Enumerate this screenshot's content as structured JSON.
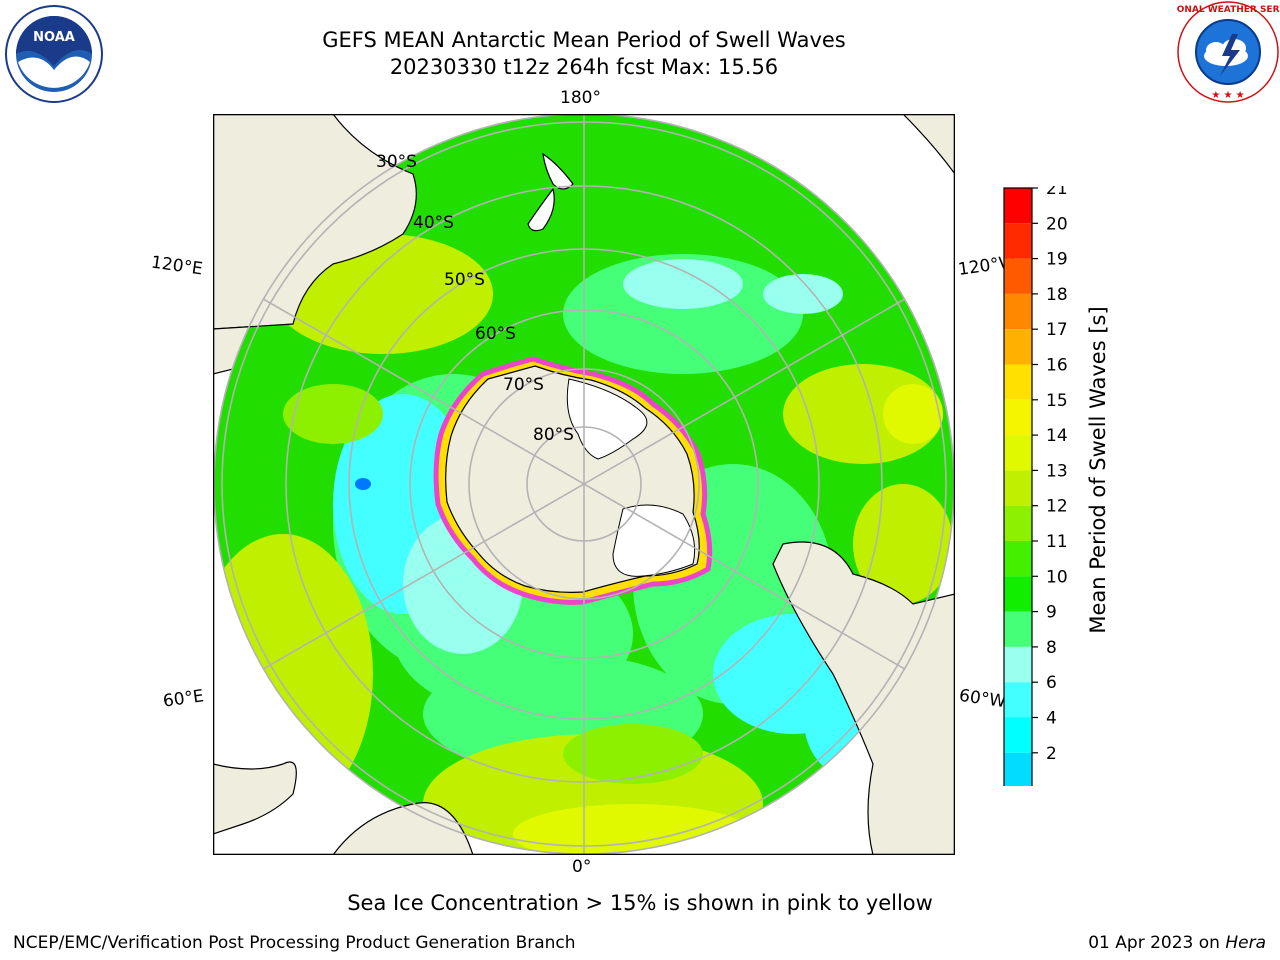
{
  "title": {
    "line1": "GEFS MEAN Antarctic Mean Period of Swell Waves",
    "line2": "20230330 t12z 264h fcst   Max: 15.56"
  },
  "map": {
    "projection": "south-polar-stereographic",
    "meridian_labels": {
      "top": "180°",
      "bottom": "0°",
      "upper_left": "120°E",
      "upper_right": "120°W",
      "lower_left": "60°E",
      "lower_right": "60°W"
    },
    "parallel_labels": [
      "30°S",
      "40°S",
      "50°S",
      "60°S",
      "70°S",
      "80°S"
    ],
    "colors": {
      "ocean_dominant": "#22dd00",
      "land": "#efedde",
      "ice_edge": "#ee44cc",
      "ice_interior": "#ffffff",
      "grid": "#b3b3b3"
    }
  },
  "colorbar": {
    "label": "Mean Period of Swell Waves [s]",
    "ticks": [
      "21",
      "20",
      "19",
      "18",
      "17",
      "16",
      "15",
      "14",
      "13",
      "12",
      "11",
      "10",
      "9",
      "8",
      "6",
      "4",
      "2"
    ],
    "colors": [
      "#ff0000",
      "#ff2a00",
      "#ff5a00",
      "#ff8800",
      "#ffb000",
      "#ffe000",
      "#f5f500",
      "#e0f800",
      "#c0f000",
      "#8cf000",
      "#44f000",
      "#11ee00",
      "#44ff77",
      "#99ffee",
      "#44ffff",
      "#00ffff",
      "#00ddff",
      "#0077ff"
    ],
    "extend_color": "#0000ff"
  },
  "note": "Sea Ice Concentration > 15% is shown in pink to yellow",
  "footer": {
    "left": "NCEP/EMC/Verification Post Processing Product Generation Branch",
    "right_date": "01 Apr 2023 on",
    "right_host": "Hera"
  },
  "logos": {
    "noaa_text": "NOAA",
    "nws_ring_text": "NATIONAL WEATHER SERVICE"
  }
}
